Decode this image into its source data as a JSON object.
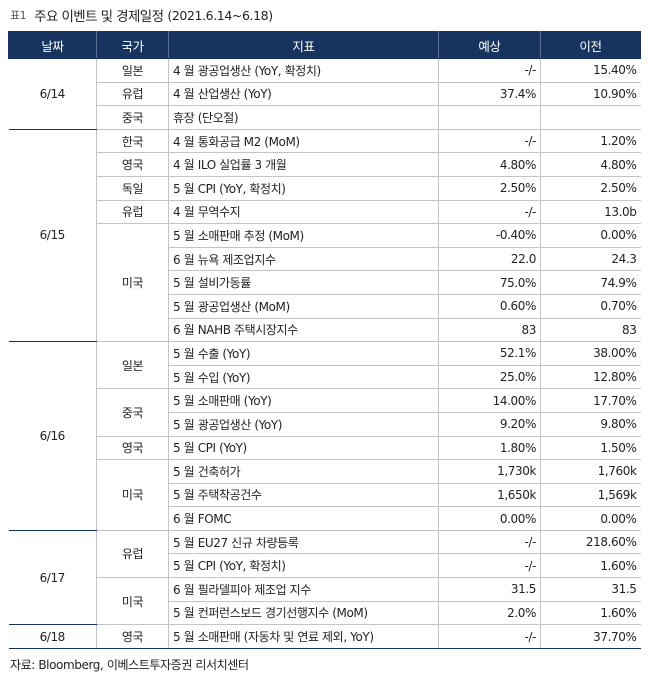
{
  "title": {
    "tag": "표1",
    "text": "주요 이벤트 및 경제일정",
    "period": "(2021.6.14~6.18)"
  },
  "columns": [
    "날짜",
    "국가",
    "지표",
    "예상",
    "이전"
  ],
  "days": [
    {
      "date": "6/14",
      "regions": [
        {
          "name": "일본",
          "rows": [
            {
              "indicator": "4 월 광공업생산 (YoY, 확정치)",
              "forecast": "-/-",
              "previous": "15.40%"
            }
          ]
        },
        {
          "name": "유럽",
          "rows": [
            {
              "indicator": "4 월 산업생산 (YoY)",
              "forecast": "37.4%",
              "previous": "10.90%"
            }
          ]
        },
        {
          "name": "중국",
          "rows": [
            {
              "indicator": "휴장 (단오절)",
              "forecast": "",
              "previous": ""
            }
          ]
        }
      ]
    },
    {
      "date": "6/15",
      "regions": [
        {
          "name": "한국",
          "rows": [
            {
              "indicator": "4 월 통화공급 M2 (MoM)",
              "forecast": "-/-",
              "previous": "1.20%"
            }
          ]
        },
        {
          "name": "영국",
          "rows": [
            {
              "indicator": "4 월 ILO 실업률 3 개월",
              "forecast": "4.80%",
              "previous": "4.80%"
            }
          ]
        },
        {
          "name": "독일",
          "rows": [
            {
              "indicator": "5 월 CPI (YoY, 확정치)",
              "forecast": "2.50%",
              "previous": "2.50%"
            }
          ]
        },
        {
          "name": "유럽",
          "rows": [
            {
              "indicator": "4 월 무역수지",
              "forecast": "-/-",
              "previous": "13.0b"
            }
          ]
        },
        {
          "name": "미국",
          "rows": [
            {
              "indicator": "5 월 소매판매 추정 (MoM)",
              "forecast": "-0.40%",
              "previous": "0.00%"
            },
            {
              "indicator": "6 월 뉴욕 제조업지수",
              "forecast": "22.0",
              "previous": "24.3"
            },
            {
              "indicator": "5 월 설비가동률",
              "forecast": "75.0%",
              "previous": "74.9%"
            },
            {
              "indicator": "5 월 광공업생산 (MoM)",
              "forecast": "0.60%",
              "previous": "0.70%"
            },
            {
              "indicator": "6 월 NAHB 주택시장지수",
              "forecast": "83",
              "previous": "83"
            }
          ]
        }
      ]
    },
    {
      "date": "6/16",
      "regions": [
        {
          "name": "일본",
          "rows": [
            {
              "indicator": "5 월 수출 (YoY)",
              "forecast": "52.1%",
              "previous": "38.00%"
            },
            {
              "indicator": "5 월 수입 (YoY)",
              "forecast": "25.0%",
              "previous": "12.80%"
            }
          ]
        },
        {
          "name": "중국",
          "rows": [
            {
              "indicator": "5 월 소매판매 (YoY)",
              "forecast": "14.00%",
              "previous": "17.70%"
            },
            {
              "indicator": "5 월 광공업생산 (YoY)",
              "forecast": "9.20%",
              "previous": "9.80%"
            }
          ]
        },
        {
          "name": "영국",
          "rows": [
            {
              "indicator": "5 월 CPI (YoY)",
              "forecast": "1.80%",
              "previous": "1.50%"
            }
          ]
        },
        {
          "name": "미국",
          "rows": [
            {
              "indicator": "5 월 건축허가",
              "forecast": "1,730k",
              "previous": "1,760k"
            },
            {
              "indicator": "5 월 주택착공건수",
              "forecast": "1,650k",
              "previous": "1,569k"
            },
            {
              "indicator": "6 월 FOMC",
              "forecast": "0.00%",
              "previous": "0.00%"
            }
          ]
        }
      ]
    },
    {
      "date": "6/17",
      "regions": [
        {
          "name": "유럽",
          "rows": [
            {
              "indicator": "5 월 EU27 신규 차량등록",
              "forecast": "-/-",
              "previous": "218.60%"
            },
            {
              "indicator": "5 월 CPI (YoY, 확정치)",
              "forecast": "-/-",
              "previous": "1.60%"
            }
          ]
        },
        {
          "name": "미국",
          "rows": [
            {
              "indicator": "6 월 필라델피아 제조업 지수",
              "forecast": "31.5",
              "previous": "31.5"
            },
            {
              "indicator": "5 월 컨퍼런스보드 경기선행지수 (MoM)",
              "forecast": "2.0%",
              "previous": "1.60%"
            }
          ]
        }
      ]
    },
    {
      "date": "6/18",
      "regions": [
        {
          "name": "영국",
          "rows": [
            {
              "indicator": "5 월 소매판매 (자동차 및 연료 제외, YoY)",
              "forecast": "-/-",
              "previous": "37.70%"
            }
          ]
        }
      ]
    }
  ],
  "source": "자료: Bloomberg, 이베스트투자증권 리서치센터",
  "colors": {
    "header_bg": "#16345f",
    "header_text": "#ffffff",
    "grid": "#c4c4c4"
  }
}
